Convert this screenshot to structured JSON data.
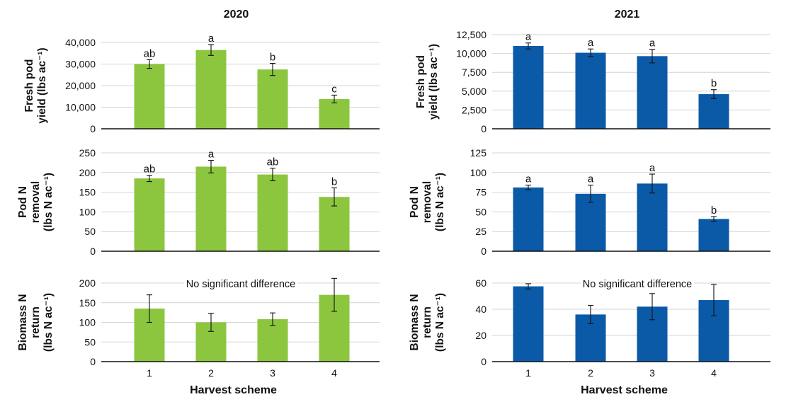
{
  "chart_data": [
    {
      "type": "bar",
      "panel": "2020 fresh pod yield",
      "title": "2020",
      "ylabel": "Fresh pod yield (lbs ac⁻¹)",
      "ylabel_lines": [
        "Fresh pod",
        "yield (lbs ac⁻¹)"
      ],
      "xlabel": "",
      "categories": [
        "1",
        "2",
        "3",
        "4"
      ],
      "values": [
        30000,
        36500,
        27500,
        13800
      ],
      "errors": [
        2000,
        2500,
        2800,
        1800
      ],
      "letters": [
        "ab",
        "a",
        "b",
        "c"
      ],
      "ylim": [
        0,
        40000
      ],
      "yticks": [
        0,
        10000,
        20000,
        30000,
        40000
      ],
      "ytick_labels": [
        "0",
        "10,000",
        "20,000",
        "30,000",
        "40,000"
      ],
      "grid": true,
      "color": "#8cc63f"
    },
    {
      "type": "bar",
      "panel": "2021 fresh pod yield",
      "title": "2021",
      "ylabel": "Fresh pod yield (lbs ac⁻¹)",
      "ylabel_lines": [
        "Fresh pod",
        "yield (lbs ac⁻¹)"
      ],
      "xlabel": "",
      "categories": [
        "1",
        "2",
        "3",
        "4"
      ],
      "values": [
        11000,
        10100,
        9650,
        4600
      ],
      "errors": [
        400,
        500,
        900,
        600
      ],
      "letters": [
        "a",
        "a",
        "a",
        "b"
      ],
      "ylim": [
        0,
        12500
      ],
      "yticks": [
        0,
        2500,
        5000,
        7500,
        10000,
        12500
      ],
      "ytick_labels": [
        "0",
        "2,500",
        "5,000",
        "7,500",
        "10,000",
        "12,500"
      ],
      "grid": true,
      "color": "#0a5aa8"
    },
    {
      "type": "bar",
      "panel": "2020 pod N removal",
      "title": "",
      "ylabel": "Pod N removal (lbs N ac⁻¹)",
      "ylabel_lines": [
        "Pod N",
        "removal",
        "(lbs N ac⁻¹)"
      ],
      "xlabel": "",
      "categories": [
        "1",
        "2",
        "3",
        "4"
      ],
      "values": [
        185,
        215,
        195,
        138
      ],
      "errors": [
        8,
        16,
        16,
        23
      ],
      "letters": [
        "ab",
        "a",
        "ab",
        "b"
      ],
      "ylim": [
        0,
        250
      ],
      "yticks": [
        0,
        50,
        100,
        150,
        200,
        250
      ],
      "ytick_labels": [
        "0",
        "50",
        "100",
        "150",
        "200",
        "250"
      ],
      "grid": true,
      "color": "#8cc63f"
    },
    {
      "type": "bar",
      "panel": "2021 pod N removal",
      "title": "",
      "ylabel": "Pod N removal (lbs N ac⁻¹)",
      "ylabel_lines": [
        "Pod N",
        "removal",
        "(lbs N ac⁻¹)"
      ],
      "xlabel": "",
      "categories": [
        "1",
        "2",
        "3",
        "4"
      ],
      "values": [
        81,
        73,
        86,
        41
      ],
      "errors": [
        3,
        11,
        12,
        3
      ],
      "letters": [
        "a",
        "a",
        "a",
        "b"
      ],
      "ylim": [
        0,
        125
      ],
      "yticks": [
        0,
        25,
        50,
        75,
        100,
        125
      ],
      "ytick_labels": [
        "0",
        "25",
        "50",
        "75",
        "100",
        "125"
      ],
      "grid": true,
      "color": "#0a5aa8"
    },
    {
      "type": "bar",
      "panel": "2020 biomass N return",
      "title": "",
      "ylabel": "Biomass N return (lbs N ac⁻¹)",
      "ylabel_lines": [
        "Biomass N",
        "return",
        "(lbs N ac⁻¹)"
      ],
      "xlabel": "Harvest scheme",
      "categories": [
        "1",
        "2",
        "3",
        "4"
      ],
      "values": [
        135,
        100,
        108,
        170
      ],
      "errors": [
        35,
        23,
        16,
        42
      ],
      "letters": [],
      "annotation": "No significant difference",
      "ylim": [
        0,
        200
      ],
      "yticks": [
        0,
        50,
        100,
        150,
        200
      ],
      "ytick_labels": [
        "0",
        "50",
        "100",
        "150",
        "200"
      ],
      "grid": true,
      "color": "#8cc63f"
    },
    {
      "type": "bar",
      "panel": "2021 biomass N return",
      "title": "",
      "ylabel": "Biomass N return (lbs N ac⁻¹)",
      "ylabel_lines": [
        "Biomass N",
        "return",
        "(lbs N ac⁻¹)"
      ],
      "xlabel": "Harvest scheme",
      "categories": [
        "1",
        "2",
        "3",
        "4"
      ],
      "values": [
        57.5,
        36,
        42,
        47
      ],
      "errors": [
        2,
        7,
        10,
        12
      ],
      "letters": [],
      "annotation": "No significant difference",
      "ylim": [
        0,
        60
      ],
      "yticks": [
        0,
        20,
        40,
        60
      ],
      "ytick_labels": [
        "0",
        "20",
        "40",
        "60"
      ],
      "grid": true,
      "color": "#0a5aa8"
    }
  ]
}
